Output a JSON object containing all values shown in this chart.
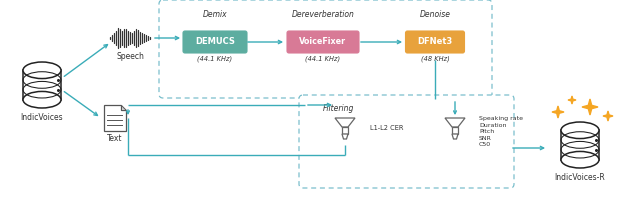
{
  "bg_color": "#ffffff",
  "teal": "#3AACB8",
  "orange_star": "#F5A623",
  "demucs_color": "#5DADA0",
  "voicefixer_color": "#D87A96",
  "dfnet_color": "#E8A23C",
  "box_border": "#7BBFCC",
  "text_dark": "#333333",
  "labels": {
    "indicvoices": "IndicVoices",
    "speech": "Speech",
    "text": "Text",
    "demix": "Demix",
    "demucs": "DEMUCS",
    "demucs_hz": "(44.1 KHz)",
    "dereverberation": "Dereverberation",
    "voicefixer": "VoiceFixer",
    "voicefixer_hz": "(44.1 KHz)",
    "denoise": "Denoise",
    "dfnet3": "DFNet3",
    "dfnet3_hz": "(48 KHz)",
    "filtering": "Filtering",
    "l1l2cer": "L1-L2 CER",
    "filter2_labels": "Speaking rate\nDuration\nPitch\nSNR\nC50",
    "indicvoices_r": "IndicVoices-R"
  }
}
